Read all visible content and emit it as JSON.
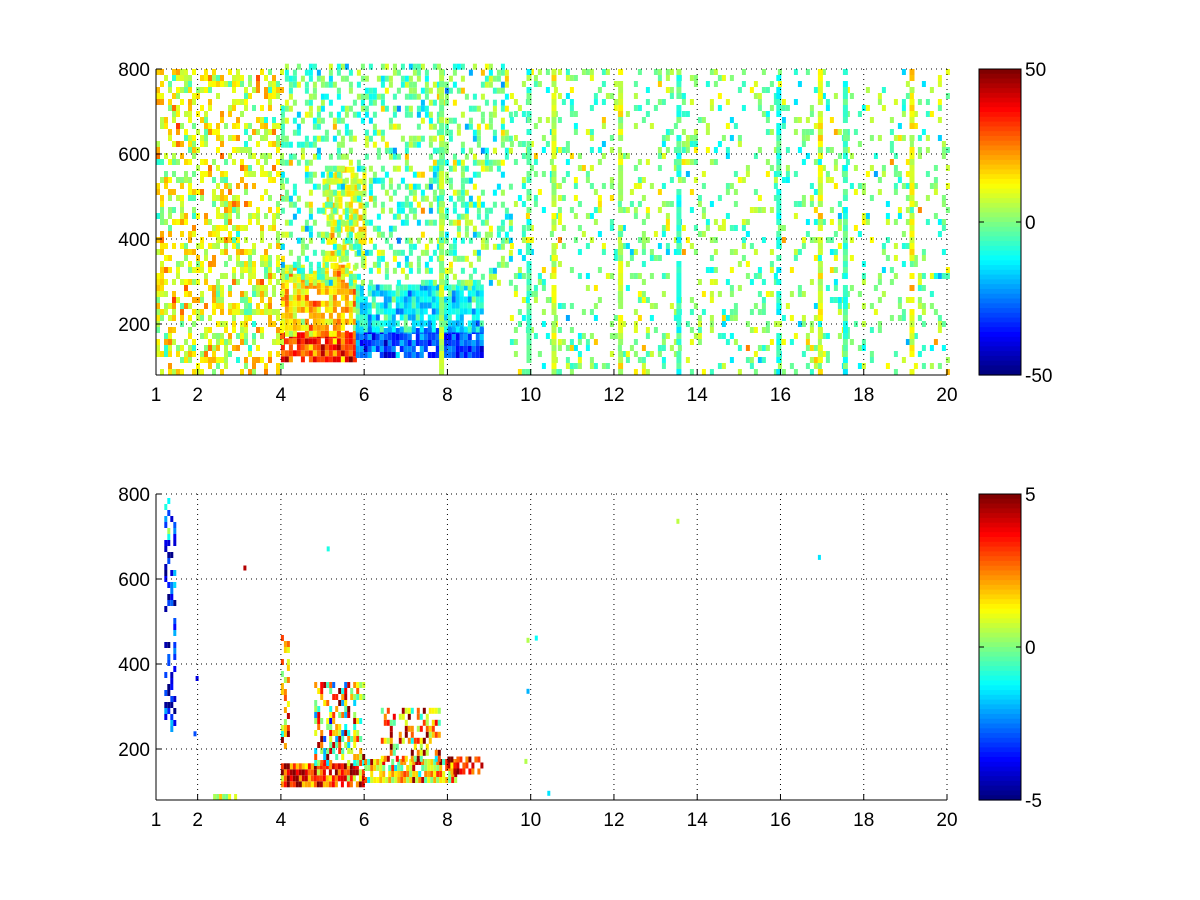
{
  "figure": {
    "background": "#ffffff",
    "colormap": "jet"
  },
  "chart_data": [
    {
      "type": "heatmap",
      "title": "",
      "xlabel": "",
      "ylabel": "",
      "xlim": [
        1,
        20
      ],
      "ylim": [
        80,
        800
      ],
      "x_ticks": [
        "1",
        "2",
        "4",
        "6",
        "8",
        "10",
        "12",
        "14",
        "16",
        "18",
        "20"
      ],
      "y_ticks": [
        "200",
        "400",
        "600",
        "800"
      ],
      "grid": true,
      "colorbar": {
        "min": -50,
        "max": 50,
        "labels": [
          "50",
          "0",
          "-50"
        ]
      },
      "features": [
        {
          "x_range": [
            4.0,
            5.8
          ],
          "y_range": [
            110,
            170
          ],
          "mean": 32,
          "spread": 12,
          "fill": 0.95
        },
        {
          "x_range": [
            4.0,
            5.8
          ],
          "y_range": [
            170,
            330
          ],
          "mean": 18,
          "spread": 10,
          "fill": 0.85
        },
        {
          "x_range": [
            5.0,
            6.0
          ],
          "y_range": [
            330,
            560
          ],
          "mean": 10,
          "spread": 8,
          "fill": 0.7
        },
        {
          "x_range": [
            5.8,
            8.8
          ],
          "y_range": [
            120,
            180
          ],
          "mean": -30,
          "spread": 10,
          "fill": 0.95
        },
        {
          "x_range": [
            5.8,
            8.8
          ],
          "y_range": [
            180,
            290
          ],
          "mean": -14,
          "spread": 10,
          "fill": 0.85
        },
        {
          "x_range": [
            1.0,
            4.0
          ],
          "y_range": [
            80,
            800
          ],
          "mean": 10,
          "spread": 12,
          "fill": 0.45
        },
        {
          "x_range": [
            4.0,
            9.5
          ],
          "y_range": [
            290,
            800
          ],
          "mean": -2,
          "spread": 12,
          "fill": 0.4
        },
        {
          "x_range": [
            9.5,
            20.0
          ],
          "y_range": [
            80,
            800
          ],
          "mean": 0,
          "spread": 12,
          "fill": 0.2
        }
      ],
      "column_bands": [
        {
          "x": 7.8,
          "mean": 4,
          "fill": 0.9
        },
        {
          "x": 9.9,
          "mean": -4,
          "fill": 0.8
        },
        {
          "x": 10.5,
          "mean": 8,
          "fill": 0.85
        },
        {
          "x": 12.1,
          "mean": 6,
          "fill": 0.8
        },
        {
          "x": 13.5,
          "mean": -8,
          "fill": 0.85
        },
        {
          "x": 15.9,
          "mean": -8,
          "fill": 0.75
        },
        {
          "x": 16.9,
          "mean": 10,
          "fill": 0.85
        },
        {
          "x": 17.5,
          "mean": -6,
          "fill": 0.85
        },
        {
          "x": 19.1,
          "mean": 12,
          "fill": 0.85
        }
      ]
    },
    {
      "type": "heatmap",
      "title": "",
      "xlabel": "",
      "ylabel": "",
      "xlim": [
        1,
        20
      ],
      "ylim": [
        80,
        800
      ],
      "x_ticks": [
        "1",
        "2",
        "4",
        "6",
        "8",
        "10",
        "12",
        "14",
        "16",
        "18",
        "20"
      ],
      "y_ticks": [
        "200",
        "400",
        "600",
        "800"
      ],
      "grid": true,
      "colorbar": {
        "min": -5,
        "max": 5,
        "labels": [
          "5",
          "0",
          "-5"
        ]
      },
      "features": [
        {
          "x_range": [
            4.0,
            6.0
          ],
          "y_range": [
            110,
            160
          ],
          "mean": 3.5,
          "spread": 2.2,
          "fill": 0.95
        },
        {
          "x_range": [
            4.8,
            6.0
          ],
          "y_range": [
            160,
            350
          ],
          "mean": 1.5,
          "spread": 3.0,
          "fill": 0.55
        },
        {
          "x_range": [
            6.0,
            8.2
          ],
          "y_range": [
            120,
            170
          ],
          "mean": 1.5,
          "spread": 2.5,
          "fill": 0.85
        },
        {
          "x_range": [
            6.4,
            7.8
          ],
          "y_range": [
            170,
            290
          ],
          "mean": 2.5,
          "spread": 2.5,
          "fill": 0.5
        },
        {
          "x_range": [
            8.0,
            8.8
          ],
          "y_range": [
            140,
            170
          ],
          "mean": 3.5,
          "spread": 1.5,
          "fill": 0.7
        },
        {
          "x_range": [
            4.0,
            4.2
          ],
          "y_range": [
            200,
            460
          ],
          "mean": 2.0,
          "spread": 2.5,
          "fill": 0.5
        },
        {
          "x_range": [
            1.2,
            1.45
          ],
          "y_range": [
            240,
            780
          ],
          "mean": -3.5,
          "spread": 2.0,
          "fill": 0.45
        },
        {
          "x_range": [
            2.3,
            2.9
          ],
          "y_range": [
            80,
            90
          ],
          "mean": 0.5,
          "spread": 0.8,
          "fill": 0.9
        }
      ],
      "specks": [
        {
          "x": 3.1,
          "y": 620,
          "value": 4.5
        },
        {
          "x": 5.1,
          "y": 665,
          "value": -1.0
        },
        {
          "x": 9.9,
          "y": 450,
          "value": 0.5
        },
        {
          "x": 9.9,
          "y": 330,
          "value": -2.0
        },
        {
          "x": 10.1,
          "y": 455,
          "value": -1.2
        },
        {
          "x": 13.5,
          "y": 730,
          "value": 0.6
        },
        {
          "x": 16.9,
          "y": 645,
          "value": -1.5
        },
        {
          "x": 1.95,
          "y": 360,
          "value": -4.0
        },
        {
          "x": 1.9,
          "y": 230,
          "value": -3.0
        },
        {
          "x": 9.85,
          "y": 165,
          "value": 0.5
        },
        {
          "x": 10.4,
          "y": 90,
          "value": -1.5
        }
      ]
    }
  ]
}
